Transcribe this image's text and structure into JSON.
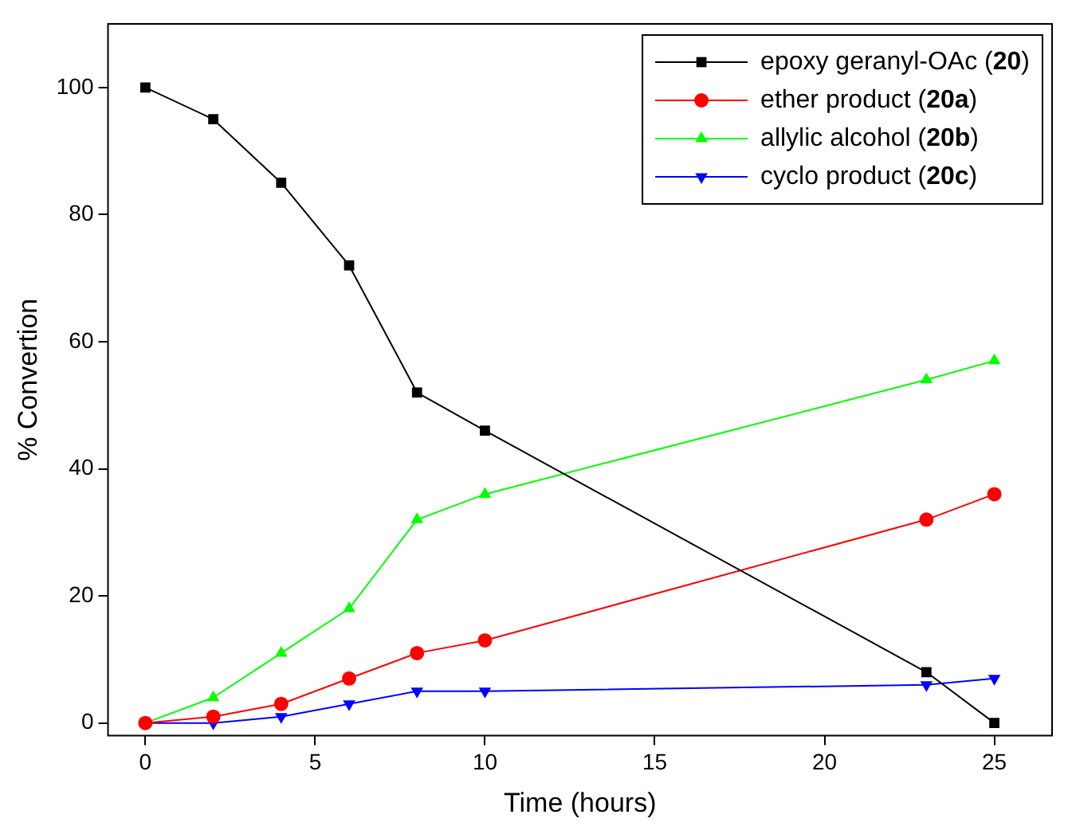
{
  "chart_data": {
    "type": "line",
    "xlabel": "Time (hours)",
    "ylabel": "% Convertion",
    "xlim": [
      -1.1,
      26.7
    ],
    "ylim": [
      -2,
      110
    ],
    "xticks": [
      0,
      5,
      10,
      15,
      20,
      25
    ],
    "yticks": [
      0,
      20,
      40,
      60,
      80,
      100
    ],
    "legend": "top right",
    "x": [
      0,
      2,
      4,
      6,
      8,
      10,
      23,
      25
    ],
    "series": [
      {
        "name": "epoxy geranyl-OAc (20)",
        "color": "#000000",
        "marker": "square",
        "values": [
          100,
          95,
          85,
          72,
          52,
          46,
          8,
          0
        ]
      },
      {
        "name": "ether product (20a)",
        "color": "#ff0000",
        "marker": "circle",
        "values": [
          0,
          1,
          3,
          7,
          11,
          13,
          32,
          36
        ]
      },
      {
        "name": "allylic alcohol (20b)",
        "color": "#00ff00",
        "marker": "triangle",
        "values": [
          0,
          4,
          11,
          18,
          32,
          36,
          54,
          57
        ]
      },
      {
        "name": "cyclo product (20c)",
        "color": "#0000ff",
        "marker": "triangle-down",
        "values": [
          0,
          0,
          1,
          3,
          5,
          5,
          6,
          7
        ]
      }
    ]
  }
}
